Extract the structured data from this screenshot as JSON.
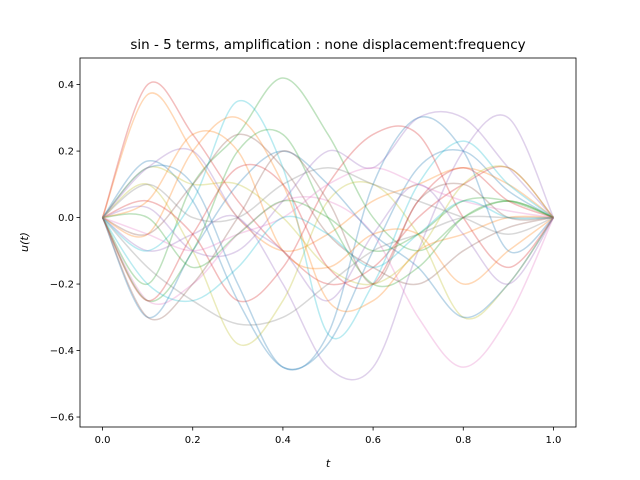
{
  "chart_data": {
    "type": "line",
    "title": "sin - 5 terms, amplification : none displacement:frequency",
    "xlabel": "t",
    "ylabel": "u(t)",
    "xlim": [
      -0.05,
      1.05
    ],
    "ylim": [
      -0.63,
      0.48
    ],
    "grid": false,
    "legend": "none",
    "x_ticks": [
      0.0,
      0.2,
      0.4,
      0.6,
      0.8,
      1.0
    ],
    "x_tick_labels": [
      "0.0",
      "0.2",
      "0.4",
      "0.6",
      "0.8",
      "1.0"
    ],
    "y_ticks": [
      -0.6,
      -0.4,
      -0.2,
      0.0,
      0.2,
      0.4
    ],
    "y_tick_labels": [
      "−0.6",
      "−0.4",
      "−0.2",
      "0.0",
      "0.2",
      "0.4"
    ],
    "line_opacity": 0.3,
    "x": [
      0.0,
      0.1,
      0.2,
      0.3,
      0.4,
      0.5,
      0.6,
      0.7,
      0.8,
      0.9,
      1.0
    ],
    "series": [
      {
        "color": "#1f77b4",
        "values": [
          0.0,
          0.17,
          0.05,
          -0.25,
          -0.45,
          -0.38,
          -0.1,
          0.15,
          0.2,
          0.08,
          0.0
        ]
      },
      {
        "color": "#ff7f0e",
        "values": [
          0.0,
          0.37,
          0.2,
          0.0,
          -0.1,
          -0.05,
          0.05,
          0.1,
          0.15,
          0.1,
          0.0
        ]
      },
      {
        "color": "#2ca02c",
        "values": [
          0.0,
          -0.2,
          0.1,
          0.25,
          0.42,
          0.25,
          0.0,
          -0.1,
          0.0,
          0.05,
          0.0
        ]
      },
      {
        "color": "#d62728",
        "values": [
          0.0,
          0.4,
          0.25,
          0.05,
          -0.1,
          -0.2,
          -0.15,
          0.0,
          0.1,
          0.15,
          0.0
        ]
      },
      {
        "color": "#9467bd",
        "values": [
          0.0,
          -0.1,
          -0.05,
          0.0,
          -0.2,
          -0.45,
          -0.45,
          -0.1,
          0.2,
          0.3,
          0.0
        ]
      },
      {
        "color": "#8c564b",
        "values": [
          0.0,
          -0.05,
          0.1,
          0.25,
          0.15,
          -0.05,
          -0.15,
          -0.2,
          -0.1,
          -0.03,
          0.0
        ]
      },
      {
        "color": "#e377c2",
        "values": [
          0.0,
          -0.25,
          -0.2,
          -0.05,
          0.05,
          0.05,
          -0.05,
          -0.3,
          -0.45,
          -0.3,
          0.0
        ]
      },
      {
        "color": "#7f7f7f",
        "values": [
          0.0,
          -0.15,
          -0.25,
          -0.32,
          -0.3,
          -0.2,
          -0.1,
          -0.05,
          0.0,
          0.0,
          0.0
        ]
      },
      {
        "color": "#bcbd22",
        "values": [
          0.0,
          0.1,
          -0.1,
          -0.38,
          -0.25,
          0.05,
          0.1,
          -0.05,
          -0.3,
          -0.2,
          0.0
        ]
      },
      {
        "color": "#17becf",
        "values": [
          0.0,
          -0.1,
          0.05,
          0.35,
          0.15,
          -0.35,
          -0.2,
          0.1,
          0.23,
          0.1,
          0.0
        ]
      },
      {
        "color": "#1f77b4",
        "values": [
          0.0,
          -0.3,
          -0.1,
          0.1,
          0.2,
          0.1,
          -0.05,
          -0.15,
          -0.3,
          -0.2,
          0.0
        ]
      },
      {
        "color": "#ff7f0e",
        "values": [
          0.0,
          -0.05,
          0.2,
          0.3,
          0.1,
          -0.25,
          -0.25,
          -0.1,
          -0.05,
          0.0,
          0.0
        ]
      },
      {
        "color": "#2ca02c",
        "values": [
          0.0,
          -0.25,
          -0.1,
          0.2,
          0.25,
          0.0,
          -0.2,
          -0.15,
          0.0,
          0.05,
          0.0
        ]
      },
      {
        "color": "#d62728",
        "values": [
          0.0,
          0.05,
          -0.05,
          -0.25,
          -0.15,
          0.1,
          0.25,
          0.25,
          0.0,
          -0.15,
          0.0
        ]
      },
      {
        "color": "#9467bd",
        "values": [
          0.0,
          0.03,
          -0.1,
          -0.1,
          0.05,
          0.2,
          0.15,
          0.3,
          0.3,
          0.15,
          0.0
        ]
      },
      {
        "color": "#8c564b",
        "values": [
          0.0,
          -0.3,
          -0.2,
          0.0,
          0.2,
          0.05,
          -0.2,
          0.05,
          0.1,
          0.0,
          0.0
        ]
      },
      {
        "color": "#e377c2",
        "values": [
          0.0,
          -0.05,
          -0.1,
          -0.05,
          0.0,
          0.1,
          0.15,
          0.1,
          0.05,
          0.02,
          0.0
        ]
      },
      {
        "color": "#7f7f7f",
        "values": [
          0.0,
          0.1,
          0.0,
          0.0,
          0.1,
          0.15,
          0.1,
          0.05,
          0.0,
          -0.05,
          0.0
        ]
      },
      {
        "color": "#bcbd22",
        "values": [
          0.0,
          0.15,
          0.1,
          0.1,
          0.0,
          -0.15,
          -0.2,
          -0.1,
          0.1,
          0.15,
          0.0
        ]
      },
      {
        "color": "#17becf",
        "values": [
          0.0,
          -0.2,
          -0.25,
          -0.15,
          0.0,
          -0.05,
          -0.15,
          -0.05,
          0.05,
          0.0,
          0.0
        ]
      },
      {
        "color": "#1f77b4",
        "values": [
          0.0,
          0.15,
          0.1,
          -0.2,
          -0.45,
          -0.35,
          0.1,
          0.3,
          0.2,
          -0.1,
          0.0
        ]
      },
      {
        "color": "#ff7f0e",
        "values": [
          0.0,
          0.05,
          0.25,
          0.2,
          -0.1,
          -0.15,
          -0.05,
          -0.05,
          -0.2,
          -0.1,
          0.0
        ]
      },
      {
        "color": "#2ca02c",
        "values": [
          0.0,
          0.0,
          -0.15,
          -0.05,
          0.05,
          0.0,
          -0.1,
          -0.05,
          0.05,
          0.05,
          0.0
        ]
      },
      {
        "color": "#d62728",
        "values": [
          0.0,
          -0.25,
          -0.05,
          0.15,
          0.1,
          -0.15,
          -0.2,
          0.05,
          0.15,
          0.05,
          0.0
        ]
      },
      {
        "color": "#9467bd",
        "values": [
          0.0,
          0.15,
          0.2,
          0.0,
          -0.1,
          -0.25,
          -0.05,
          0.1,
          -0.05,
          -0.2,
          0.0
        ]
      }
    ]
  }
}
